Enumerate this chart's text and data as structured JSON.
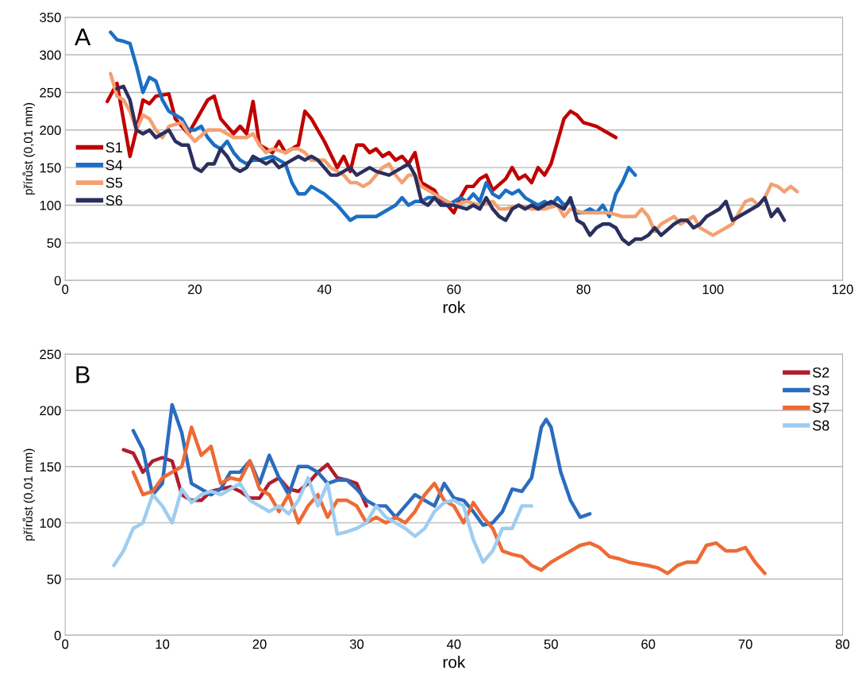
{
  "chart_data": [
    {
      "type": "line",
      "title": "A",
      "xlabel": "rok",
      "ylabel": "přírůst (0,01 mm)",
      "xlim": [
        0,
        120
      ],
      "ylim": [
        0,
        350
      ],
      "xticks": [
        0,
        20,
        40,
        60,
        80,
        100,
        120
      ],
      "yticks": [
        0,
        50,
        100,
        150,
        200,
        250,
        300,
        350
      ],
      "grid": "y",
      "legend": "left",
      "series": [
        {
          "name": "S1",
          "color": "#c00000",
          "x": [
            6.5,
            8,
            10,
            11,
            12,
            13,
            14,
            16,
            17,
            18,
            19,
            20,
            22,
            23,
            24,
            26,
            27,
            28,
            29,
            30,
            32,
            33,
            34,
            36,
            37,
            38,
            40,
            42,
            43,
            44,
            45,
            46,
            47,
            48,
            49,
            50,
            51,
            52,
            53,
            54,
            55,
            56,
            57,
            58,
            59,
            60,
            61,
            62,
            63,
            64,
            65,
            66,
            68,
            69,
            70,
            71,
            72,
            73,
            74,
            75,
            76,
            77,
            78,
            79,
            80,
            82,
            84,
            85
          ],
          "values": [
            238,
            262,
            165,
            200,
            240,
            235,
            245,
            248,
            215,
            205,
            195,
            210,
            240,
            245,
            215,
            195,
            205,
            195,
            238,
            180,
            170,
            185,
            170,
            180,
            225,
            215,
            185,
            150,
            165,
            145,
            180,
            180,
            170,
            175,
            165,
            170,
            160,
            165,
            155,
            170,
            130,
            125,
            120,
            105,
            100,
            90,
            110,
            125,
            125,
            135,
            140,
            120,
            135,
            150,
            135,
            140,
            130,
            150,
            140,
            155,
            185,
            215,
            225,
            220,
            210,
            205,
            195,
            190
          ]
        },
        {
          "name": "S4",
          "color": "#1a6fc4",
          "x": [
            7,
            8,
            9,
            10,
            11,
            12,
            13,
            14,
            15,
            16,
            18,
            19,
            20,
            21,
            22,
            23,
            24,
            25,
            26,
            27,
            28,
            29,
            30,
            32,
            33,
            34,
            35,
            36,
            37,
            38,
            40,
            42,
            43,
            44,
            45,
            46,
            48,
            49,
            50,
            51,
            52,
            53,
            54,
            55,
            56,
            58,
            59,
            60,
            61,
            62,
            63,
            64,
            65,
            66,
            67,
            68,
            69,
            70,
            71,
            72,
            73,
            74,
            75,
            76,
            77,
            78,
            79,
            80,
            81,
            82,
            83,
            84,
            85,
            86,
            87,
            88
          ],
          "values": [
            330,
            320,
            318,
            315,
            285,
            250,
            270,
            265,
            240,
            225,
            215,
            200,
            200,
            205,
            190,
            180,
            175,
            185,
            170,
            160,
            155,
            160,
            160,
            165,
            160,
            155,
            130,
            115,
            115,
            125,
            115,
            100,
            90,
            80,
            85,
            85,
            85,
            90,
            95,
            100,
            110,
            100,
            105,
            105,
            110,
            110,
            100,
            105,
            110,
            105,
            115,
            105,
            130,
            115,
            110,
            120,
            115,
            120,
            110,
            105,
            100,
            105,
            100,
            110,
            100,
            105,
            90,
            90,
            95,
            90,
            100,
            85,
            115,
            130,
            150,
            140
          ]
        },
        {
          "name": "S5",
          "color": "#f4a070",
          "x": [
            7,
            8,
            9,
            10,
            11,
            12,
            13,
            14,
            15,
            16,
            18,
            19,
            20,
            22,
            24,
            26,
            28,
            29,
            30,
            31,
            32,
            34,
            35,
            36,
            37,
            38,
            40,
            41,
            42,
            43,
            44,
            45,
            46,
            47,
            48,
            49,
            50,
            51,
            52,
            53,
            54,
            55,
            56,
            58,
            59,
            60,
            62,
            64,
            66,
            67,
            68,
            70,
            72,
            74,
            76,
            77,
            78,
            80,
            82,
            84,
            86,
            88,
            89,
            90,
            91,
            92,
            93,
            94,
            95,
            96,
            97,
            98,
            99,
            100,
            101,
            102,
            103,
            104,
            105,
            106,
            107,
            108,
            109,
            110,
            111,
            112,
            113
          ],
          "values": [
            275,
            245,
            240,
            225,
            200,
            220,
            215,
            200,
            190,
            205,
            210,
            195,
            185,
            200,
            200,
            190,
            190,
            195,
            180,
            170,
            175,
            170,
            175,
            175,
            170,
            160,
            160,
            150,
            145,
            140,
            130,
            130,
            125,
            130,
            140,
            150,
            155,
            140,
            130,
            140,
            140,
            125,
            120,
            110,
            105,
            100,
            105,
            100,
            105,
            95,
            95,
            100,
            95,
            95,
            100,
            85,
            95,
            90,
            90,
            90,
            85,
            85,
            95,
            85,
            65,
            75,
            80,
            85,
            75,
            80,
            85,
            70,
            65,
            60,
            65,
            70,
            75,
            90,
            105,
            108,
            100,
            110,
            128,
            125,
            118,
            125,
            118
          ]
        },
        {
          "name": "S6",
          "color": "#2b2f5e",
          "x": [
            8,
            9,
            10,
            11,
            12,
            13,
            14,
            15,
            16,
            17,
            18,
            19,
            20,
            21,
            22,
            23,
            24,
            25,
            26,
            27,
            28,
            29,
            30,
            31,
            32,
            33,
            34,
            35,
            36,
            37,
            38,
            39,
            40,
            41,
            42,
            43,
            44,
            45,
            46,
            47,
            48,
            50,
            52,
            53,
            54,
            55,
            56,
            57,
            58,
            60,
            62,
            63,
            64,
            65,
            66,
            67,
            68,
            69,
            70,
            71,
            72,
            73,
            74,
            75,
            76,
            77,
            78,
            79,
            80,
            81,
            82,
            83,
            84,
            85,
            86,
            87,
            88,
            89,
            90,
            91,
            92,
            94,
            95,
            96,
            97,
            98,
            99,
            100,
            101,
            102,
            103,
            104,
            105,
            106,
            107,
            108,
            109,
            110,
            111
          ],
          "values": [
            255,
            258,
            240,
            200,
            195,
            200,
            190,
            195,
            200,
            185,
            180,
            180,
            150,
            145,
            155,
            155,
            175,
            165,
            150,
            145,
            150,
            165,
            160,
            155,
            160,
            150,
            155,
            160,
            165,
            160,
            165,
            160,
            150,
            140,
            140,
            145,
            150,
            140,
            145,
            150,
            145,
            140,
            150,
            155,
            140,
            105,
            100,
            110,
            100,
            100,
            95,
            100,
            95,
            110,
            95,
            85,
            80,
            95,
            100,
            95,
            100,
            95,
            100,
            105,
            100,
            95,
            110,
            80,
            75,
            60,
            70,
            75,
            75,
            70,
            55,
            48,
            55,
            55,
            60,
            70,
            60,
            75,
            80,
            80,
            70,
            75,
            85,
            90,
            95,
            105,
            80,
            85,
            90,
            95,
            100,
            110,
            85,
            95,
            80
          ]
        }
      ]
    },
    {
      "type": "line",
      "title": "B",
      "xlabel": "rok",
      "ylabel": "přírůst (0,01 mm)",
      "xlim": [
        0,
        80
      ],
      "ylim": [
        0,
        250
      ],
      "xticks": [
        0,
        10,
        20,
        30,
        40,
        50,
        60,
        70,
        80
      ],
      "yticks": [
        0,
        50,
        100,
        150,
        200,
        250
      ],
      "grid": "y",
      "legend": "top right",
      "series": [
        {
          "name": "S2",
          "color": "#b01c2e",
          "x": [
            6,
            7,
            8,
            9,
            10,
            11,
            12,
            13,
            14,
            15,
            16,
            17,
            18,
            19,
            20,
            21,
            22,
            23,
            24,
            25,
            26,
            27,
            28,
            29,
            30,
            31
          ],
          "values": [
            165,
            162,
            145,
            155,
            158,
            155,
            125,
            120,
            120,
            128,
            130,
            132,
            128,
            122,
            122,
            135,
            140,
            130,
            128,
            135,
            145,
            152,
            140,
            138,
            135,
            115
          ]
        },
        {
          "name": "S3",
          "color": "#2a6cbf",
          "x": [
            7,
            8,
            9,
            10,
            11,
            12,
            13,
            14,
            15,
            16,
            17,
            18,
            19,
            20,
            21,
            22,
            23,
            24,
            25,
            26,
            27,
            28,
            29,
            30,
            31,
            32,
            33,
            34,
            35,
            36,
            37,
            38,
            39,
            40,
            41,
            42,
            43,
            44,
            45,
            46,
            47,
            48,
            49,
            49.5,
            50,
            51,
            52,
            53,
            54
          ],
          "values": [
            182,
            165,
            125,
            135,
            205,
            180,
            135,
            130,
            125,
            130,
            145,
            145,
            155,
            135,
            160,
            140,
            125,
            150,
            150,
            145,
            135,
            138,
            138,
            130,
            120,
            115,
            115,
            105,
            115,
            125,
            120,
            115,
            135,
            122,
            120,
            110,
            98,
            100,
            110,
            130,
            128,
            140,
            185,
            192,
            185,
            145,
            120,
            105,
            108
          ]
        },
        {
          "name": "S7",
          "color": "#ee6a35",
          "x": [
            7,
            8,
            9,
            10,
            11,
            12,
            13,
            14,
            15,
            16,
            17,
            18,
            19,
            20,
            21,
            22,
            23,
            24,
            25,
            26,
            27,
            28,
            29,
            30,
            31,
            32,
            33,
            34,
            35,
            36,
            37,
            38,
            39,
            40,
            41,
            42,
            43,
            44,
            45,
            46,
            47,
            48,
            49,
            50,
            51,
            52,
            53,
            54,
            55,
            56,
            57,
            58,
            60,
            61,
            62,
            63,
            64,
            65,
            66,
            67,
            68,
            69,
            70,
            71,
            72
          ],
          "values": [
            145,
            125,
            128,
            140,
            145,
            150,
            185,
            160,
            168,
            135,
            140,
            138,
            155,
            130,
            125,
            110,
            125,
            100,
            115,
            125,
            105,
            120,
            120,
            115,
            100,
            105,
            100,
            105,
            100,
            110,
            125,
            135,
            120,
            115,
            100,
            118,
            105,
            95,
            75,
            72,
            70,
            62,
            58,
            65,
            70,
            75,
            80,
            82,
            78,
            70,
            68,
            65,
            62,
            60,
            55,
            62,
            65,
            65,
            80,
            82,
            75,
            75,
            78,
            65,
            55
          ]
        },
        {
          "name": "S8",
          "color": "#9fcdf0",
          "x": [
            5,
            6,
            7,
            8,
            9,
            10,
            11,
            12,
            13,
            14,
            15,
            16,
            17,
            18,
            19,
            20,
            21,
            22,
            23,
            24,
            25,
            26,
            27,
            28,
            29,
            30,
            31,
            32,
            33,
            34,
            35,
            36,
            37,
            38,
            39,
            40,
            41,
            42,
            43,
            44,
            45,
            46,
            47,
            48
          ],
          "values": [
            62,
            75,
            95,
            100,
            125,
            115,
            100,
            130,
            118,
            125,
            128,
            125,
            130,
            135,
            120,
            115,
            110,
            115,
            108,
            120,
            140,
            115,
            135,
            90,
            92,
            95,
            100,
            115,
            105,
            100,
            95,
            88,
            95,
            110,
            118,
            120,
            115,
            85,
            65,
            75,
            95,
            95,
            115,
            115
          ]
        }
      ]
    }
  ]
}
